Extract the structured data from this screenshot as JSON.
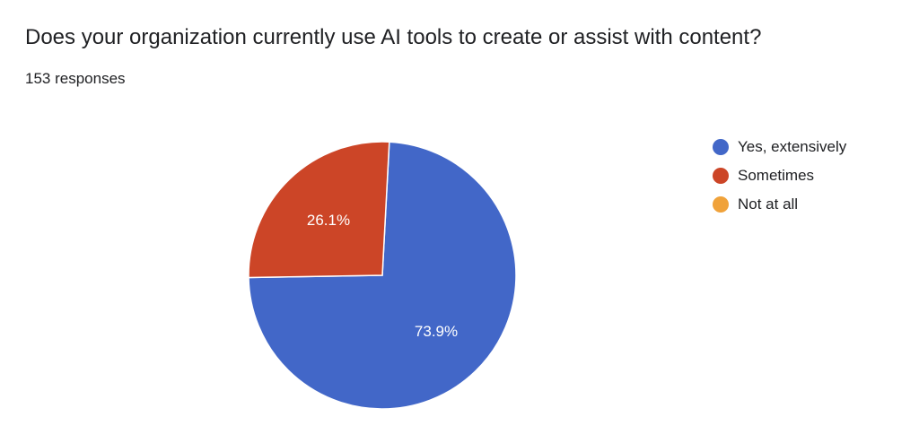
{
  "question": {
    "title": "Does your organization currently use AI tools to create or assist with content?",
    "responses_label": "153 responses"
  },
  "chart_data": {
    "type": "pie",
    "categories": [
      "Yes, extensively",
      "Sometimes",
      "Not at all"
    ],
    "values": [
      73.9,
      26.1,
      0
    ],
    "data_labels": [
      "73.9%",
      "26.1%",
      ""
    ],
    "colors": [
      "#4267c8",
      "#cc4527",
      "#f0a23a"
    ],
    "legend_position": "right"
  }
}
